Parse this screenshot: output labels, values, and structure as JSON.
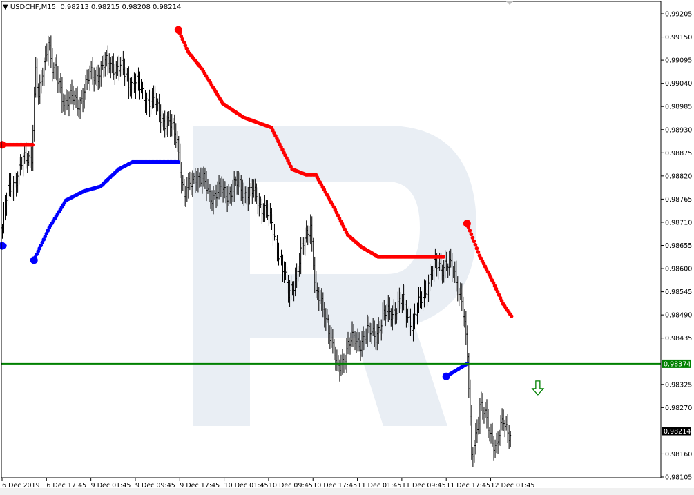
{
  "header": {
    "symbol": "USDCHF,M15",
    "ohlc": "0.98213 0.98215 0.98208 0.98214"
  },
  "colors": {
    "bars": "#000000",
    "sar_resistance": "#ff0000",
    "sar_support": "#0000ff",
    "level_line": "#008000",
    "price_line": "#c0c0c0",
    "watermark": "#e9eef4"
  },
  "chart_data": {
    "type": "bar",
    "title": "USDCHF,M15",
    "ylim": [
      0.9809,
      0.9923
    ],
    "grid": false,
    "y_ticks": [
      "0.99205",
      "0.99150",
      "0.99095",
      "0.99040",
      "0.98985",
      "0.98930",
      "0.98875",
      "0.98820",
      "0.98765",
      "0.98710",
      "0.98655",
      "0.98600",
      "0.98545",
      "0.98490",
      "0.98435",
      "0.98325",
      "0.98270",
      "0.98160",
      "0.98105"
    ],
    "x_ticks": [
      {
        "bar": 0,
        "label": "6 Dec 2019"
      },
      {
        "bar": 32,
        "label": "6 Dec 17:45"
      },
      {
        "bar": 64,
        "label": "9 Dec 01:45"
      },
      {
        "bar": 96,
        "label": "9 Dec 09:45"
      },
      {
        "bar": 128,
        "label": "9 Dec 17:45"
      },
      {
        "bar": 160,
        "label": "10 Dec 01:45"
      },
      {
        "bar": 192,
        "label": "10 Dec 09:45"
      },
      {
        "bar": 224,
        "label": "10 Dec 17:45"
      },
      {
        "bar": 256,
        "label": "11 Dec 01:45"
      },
      {
        "bar": 288,
        "label": "11 Dec 09:45"
      },
      {
        "bar": 320,
        "label": "11 Dec 17:45"
      },
      {
        "bar": 352,
        "label": "12 Dec 01:45"
      }
    ],
    "price_path": [
      [
        0,
        0.98697
      ],
      [
        4,
        0.98779
      ],
      [
        11,
        0.98828
      ],
      [
        21,
        0.98877
      ],
      [
        24,
        0.99074
      ],
      [
        26,
        0.98992
      ],
      [
        33,
        0.99156
      ],
      [
        36,
        0.99074
      ],
      [
        44,
        0.99008
      ],
      [
        54,
        0.98992
      ],
      [
        64,
        0.99057
      ],
      [
        79,
        0.9909
      ],
      [
        89,
        0.99057
      ],
      [
        99,
        0.99025
      ],
      [
        109,
        0.98992
      ],
      [
        119,
        0.98943
      ],
      [
        126,
        0.9891
      ],
      [
        131,
        0.98762
      ],
      [
        139,
        0.98828
      ],
      [
        149,
        0.98779
      ],
      [
        159,
        0.98779
      ],
      [
        169,
        0.98795
      ],
      [
        179,
        0.98779
      ],
      [
        189,
        0.98746
      ],
      [
        199,
        0.98648
      ],
      [
        206,
        0.98533
      ],
      [
        214,
        0.98615
      ],
      [
        222,
        0.98713
      ],
      [
        226,
        0.98533
      ],
      [
        234,
        0.98484
      ],
      [
        241,
        0.98353
      ],
      [
        249,
        0.98418
      ],
      [
        259,
        0.98434
      ],
      [
        269,
        0.98451
      ],
      [
        279,
        0.985
      ],
      [
        289,
        0.98516
      ],
      [
        296,
        0.98467
      ],
      [
        304,
        0.98549
      ],
      [
        311,
        0.98598
      ],
      [
        319,
        0.98615
      ],
      [
        326,
        0.98582
      ],
      [
        331,
        0.98533
      ],
      [
        335,
        0.98385
      ],
      [
        338,
        0.98156
      ],
      [
        344,
        0.9827
      ],
      [
        351,
        0.98221
      ],
      [
        356,
        0.98172
      ],
      [
        361,
        0.98238
      ],
      [
        366,
        0.98213
      ]
    ],
    "sar_red": [
      [
        [
          0,
          0.98894
        ],
        [
          22,
          0.98894
        ]
      ],
      [
        [
          127,
          0.99167
        ],
        [
          134,
          0.99115
        ],
        [
          144,
          0.99074
        ],
        [
          159,
          0.98992
        ],
        [
          174,
          0.98959
        ],
        [
          194,
          0.98935
        ],
        [
          209,
          0.98836
        ],
        [
          219,
          0.98823
        ],
        [
          226,
          0.98823
        ],
        [
          239,
          0.98746
        ],
        [
          249,
          0.9868
        ],
        [
          259,
          0.98651
        ],
        [
          271,
          0.98628
        ],
        [
          318,
          0.98628
        ]
      ],
      [
        [
          335,
          0.98707
        ],
        [
          344,
          0.98631
        ],
        [
          354,
          0.98566
        ],
        [
          361,
          0.98516
        ],
        [
          367,
          0.98487
        ]
      ]
    ],
    "sar_blue": [
      [
        [
          0,
          0.98654
        ],
        [
          2,
          0.98654
        ]
      ],
      [
        [
          23,
          0.9862
        ],
        [
          34,
          0.98697
        ],
        [
          46,
          0.98762
        ],
        [
          59,
          0.98784
        ],
        [
          71,
          0.98795
        ],
        [
          84,
          0.98836
        ],
        [
          94,
          0.98853
        ],
        [
          127,
          0.98853
        ]
      ],
      [
        [
          320,
          0.98344
        ],
        [
          335,
          0.98374
        ]
      ]
    ],
    "level_line": {
      "price": 0.98374,
      "label": "0.98374"
    },
    "current_price": {
      "price": 0.98214,
      "label": "0.98214"
    },
    "annotation": {
      "type": "down-arrow",
      "bar": 386,
      "price": 0.98315
    }
  }
}
